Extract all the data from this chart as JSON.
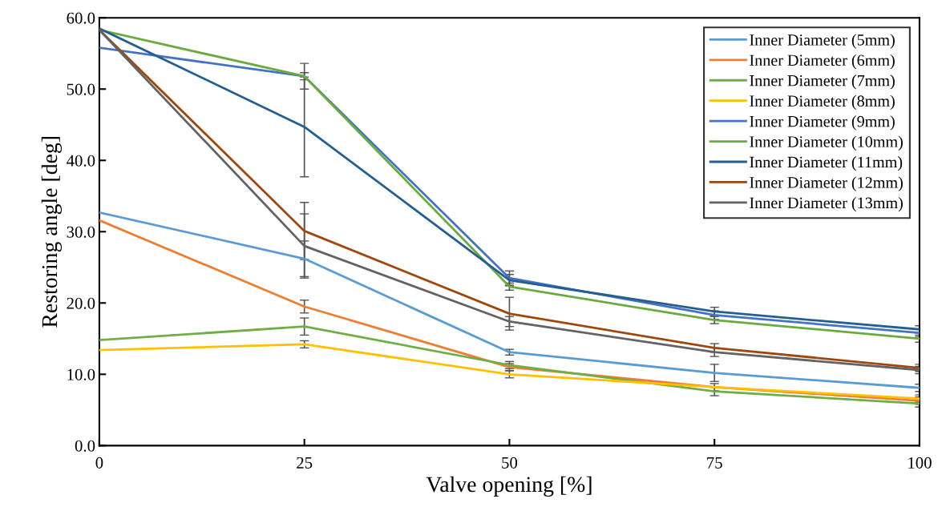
{
  "chart_data": {
    "type": "line",
    "xlabel": "Valve opening [%]",
    "ylabel": "Restoring angle [deg]",
    "x": [
      0,
      25,
      50,
      75,
      100
    ],
    "xlim": [
      0,
      100
    ],
    "xticks": [
      0,
      25,
      50,
      75,
      100
    ],
    "ylim": [
      0,
      60
    ],
    "yticks": [
      {
        "value": 0,
        "label": "0.0"
      },
      {
        "value": 10,
        "label": "10.0"
      },
      {
        "value": 20,
        "label": "20.0"
      },
      {
        "value": 30,
        "label": "30.0"
      },
      {
        "value": 40,
        "label": "40.0"
      },
      {
        "value": 50,
        "label": "50.0"
      },
      {
        "value": 60,
        "label": "60.0"
      }
    ],
    "grid": false,
    "legend": "top right",
    "marker": "none",
    "line_style": "solid",
    "series": [
      {
        "name": "Inner Diameter (5mm)",
        "color": "#5b9bd5",
        "values": [
          32.7,
          26.2,
          13.1,
          10.2,
          8.1
        ],
        "errors": [
          null,
          2.5,
          0.4,
          1.2,
          0.5
        ]
      },
      {
        "name": "Inner Diameter (6mm)",
        "color": "#ed7d31",
        "values": [
          31.6,
          19.5,
          11.0,
          8.2,
          6.3
        ],
        "errors": [
          null,
          0.9,
          0.5,
          null,
          0.5
        ]
      },
      {
        "name": "Inner Diameter (7mm)",
        "color": "#70ad47",
        "values": [
          14.8,
          16.7,
          11.3,
          7.6,
          5.9
        ],
        "errors": [
          null,
          1.2,
          0.5,
          0.6,
          0.5
        ]
      },
      {
        "name": "Inner Diameter (8mm)",
        "color": "#ffc000",
        "values": [
          13.4,
          14.2,
          10.0,
          8.2,
          6.6
        ],
        "errors": [
          null,
          0.5,
          0.5,
          0.5,
          0.5
        ]
      },
      {
        "name": "Inner Diameter (9mm)",
        "color": "#4472c4",
        "values": [
          55.8,
          51.8,
          23.5,
          18.3,
          15.8
        ],
        "errors": [
          null,
          1.8,
          1.0,
          0.6,
          0.5
        ]
      },
      {
        "name": "Inner Diameter (10mm)",
        "color": "#6aaa3e",
        "values": [
          58.3,
          51.8,
          22.3,
          17.6,
          15.0
        ],
        "errors": [
          null,
          0.5,
          0.5,
          0.5,
          0.5
        ]
      },
      {
        "name": "Inner Diameter (11mm)",
        "color": "#255e91",
        "values": [
          58.5,
          44.7,
          23.2,
          18.8,
          16.3
        ],
        "errors": [
          null,
          7.0,
          0.8,
          0.6,
          0.5
        ]
      },
      {
        "name": "Inner Diameter (12mm)",
        "color": "#9e480e",
        "values": [
          58.3,
          30.1,
          18.5,
          13.7,
          10.9
        ],
        "errors": [
          null,
          4.0,
          2.3,
          0.6,
          0.5
        ]
      },
      {
        "name": "Inner Diameter (13mm)",
        "color": "#636363",
        "values": [
          58.3,
          28.0,
          17.4,
          13.1,
          10.6
        ],
        "errors": [
          null,
          4.5,
          0.7,
          0.6,
          0.5
        ]
      }
    ]
  }
}
